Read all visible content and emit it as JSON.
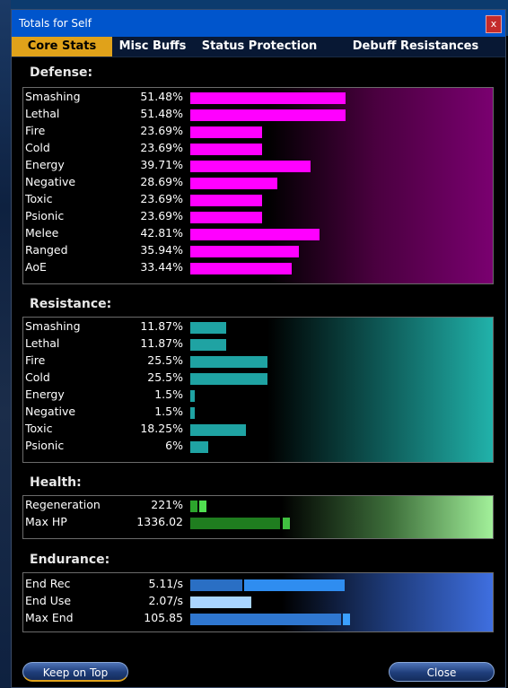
{
  "window": {
    "title": "Totals for Self",
    "close_glyph": "x"
  },
  "tabs": [
    {
      "label": "Core Stats",
      "active": true
    },
    {
      "label": "Misc Buffs",
      "active": false
    },
    {
      "label": "Status Protection",
      "active": false
    },
    {
      "label": "Debuff Resistances",
      "active": false
    }
  ],
  "defense": {
    "title": "Defense:",
    "bar_color": "#ff00ff",
    "rows": [
      {
        "label": "Smashing",
        "value": "51.48%",
        "level": 51.48
      },
      {
        "label": "Lethal",
        "value": "51.48%",
        "level": 51.48
      },
      {
        "label": "Fire",
        "value": "23.69%",
        "level": 23.69
      },
      {
        "label": "Cold",
        "value": "23.69%",
        "level": 23.69
      },
      {
        "label": "Energy",
        "value": "39.71%",
        "level": 39.71
      },
      {
        "label": "Negative",
        "value": "28.69%",
        "level": 28.69
      },
      {
        "label": "Toxic",
        "value": "23.69%",
        "level": 23.69
      },
      {
        "label": "Psionic",
        "value": "23.69%",
        "level": 23.69
      },
      {
        "label": "Melee",
        "value": "42.81%",
        "level": 42.81
      },
      {
        "label": "Ranged",
        "value": "35.94%",
        "level": 35.94
      },
      {
        "label": "AoE",
        "value": "33.44%",
        "level": 33.44
      }
    ]
  },
  "resistance": {
    "title": "Resistance:",
    "bar_color": "#1fa3a3",
    "rows": [
      {
        "label": "Smashing",
        "value": "11.87%",
        "level": 11.87
      },
      {
        "label": "Lethal",
        "value": "11.87%",
        "level": 11.87
      },
      {
        "label": "Fire",
        "value": "25.5%",
        "level": 25.5
      },
      {
        "label": "Cold",
        "value": "25.5%",
        "level": 25.5
      },
      {
        "label": "Energy",
        "value": "1.5%",
        "level": 1.5
      },
      {
        "label": "Negative",
        "value": "1.5%",
        "level": 1.5
      },
      {
        "label": "Toxic",
        "value": "18.25%",
        "level": 18.25
      },
      {
        "label": "Psionic",
        "value": "6%",
        "level": 6
      }
    ]
  },
  "health": {
    "title": "Health:",
    "rows": [
      {
        "label": "Regeneration",
        "value": "221%"
      },
      {
        "label": "Max HP",
        "value": "1336.02"
      }
    ]
  },
  "endurance": {
    "title": "Endurance:",
    "rows": [
      {
        "label": "End Rec",
        "value": "5.11/s"
      },
      {
        "label": "End Use",
        "value": "2.07/s"
      },
      {
        "label": "Max End",
        "value": "105.85"
      }
    ]
  },
  "buttons": {
    "keep_on_top": "Keep on Top",
    "close": "Close"
  }
}
